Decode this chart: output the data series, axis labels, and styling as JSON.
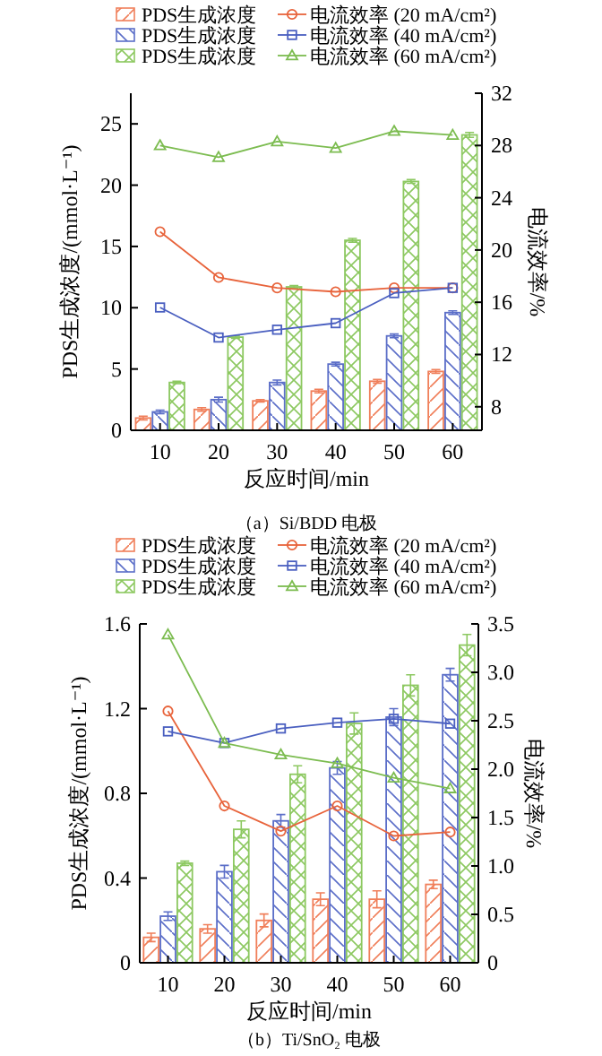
{
  "chart_data": [
    {
      "type": "bar",
      "categories": [
        "10",
        "20",
        "30",
        "40",
        "50",
        "60"
      ],
      "xlabel": "反应时间/min",
      "ylabel": "PDS生成浓度/(mmol·L⁻¹)",
      "y2label": "电流效率/%",
      "ylim": [
        0,
        27.5
      ],
      "yticks": [
        0,
        5,
        10,
        15,
        20,
        25
      ],
      "y2lim": [
        6.2,
        32
      ],
      "y2ticks": [
        8,
        12,
        16,
        20,
        24,
        28,
        32
      ],
      "legend": "top",
      "grid": false,
      "annotations": [
        "（a）Si/BDD 电极"
      ],
      "series": [
        {
          "name": "PDS生成浓度",
          "color": "#f07f5a",
          "values": [
            1.0,
            1.7,
            2.4,
            3.2,
            4.0,
            4.8
          ],
          "errors": [
            0.15,
            0.15,
            0.1,
            0.15,
            0.15,
            0.15
          ]
        },
        {
          "name": "PDS生成浓度",
          "color": "#5b6ec8",
          "values": [
            1.5,
            2.5,
            3.9,
            5.4,
            7.7,
            9.6
          ],
          "errors": [
            0.15,
            0.2,
            0.2,
            0.15,
            0.15,
            0.15
          ]
        },
        {
          "name": "PDS生成浓度",
          "color": "#8cc860",
          "values": [
            3.9,
            7.6,
            11.7,
            15.5,
            20.3,
            24.1
          ],
          "errors": [
            0.1,
            0.1,
            0.1,
            0.15,
            0.15,
            0.2
          ]
        },
        {
          "type": "line",
          "axis": "y2",
          "marker": "circle",
          "name": "电流效率 (20 mA/cm²)",
          "color": "#e8643c",
          "values": [
            21.4,
            17.9,
            17.1,
            16.8,
            17.1,
            17.1
          ]
        },
        {
          "type": "line",
          "axis": "y2",
          "marker": "square",
          "name": "电流效率 (40 mA/cm²)",
          "color": "#4a5fc0",
          "values": [
            15.6,
            13.3,
            13.9,
            14.4,
            16.7,
            17.1
          ]
        },
        {
          "type": "line",
          "axis": "y2",
          "marker": "triangle",
          "name": "电流效率 (60 mA/cm²)",
          "color": "#7cbc50",
          "values": [
            28.0,
            27.1,
            28.3,
            27.8,
            29.1,
            28.8
          ]
        }
      ]
    },
    {
      "type": "bar",
      "categories": [
        "10",
        "20",
        "30",
        "40",
        "50",
        "60"
      ],
      "xlabel": "反应时间/min",
      "ylabel": "PDS生成浓度/(mmol·L⁻¹)",
      "y2label": "电流效率/%",
      "ylim": [
        0,
        1.6
      ],
      "yticks": [
        0,
        0.4,
        0.8,
        1.2,
        1.6
      ],
      "y2lim": [
        0,
        3.5
      ],
      "y2ticks": [
        {
          "value": 0,
          "label": "0"
        },
        0.5,
        {
          "value": 1,
          "label": "1.0"
        },
        1.5,
        {
          "value": 2,
          "label": "2.0"
        },
        2.5,
        {
          "value": 3,
          "label": "3.0"
        },
        3.5
      ],
      "legend": "top",
      "grid": false,
      "annotations": [
        "（b）Ti/SnO₂ 电极"
      ],
      "series": [
        {
          "name": "PDS生成浓度",
          "color": "#f07f5a",
          "values": [
            0.12,
            0.16,
            0.2,
            0.3,
            0.3,
            0.37
          ],
          "errors": [
            0.02,
            0.02,
            0.03,
            0.03,
            0.04,
            0.02
          ]
        },
        {
          "name": "PDS生成浓度",
          "color": "#5b6ec8",
          "values": [
            0.22,
            0.43,
            0.67,
            0.92,
            1.16,
            1.36
          ],
          "errors": [
            0.02,
            0.03,
            0.03,
            0.03,
            0.04,
            0.03
          ]
        },
        {
          "name": "PDS生成浓度",
          "color": "#8cc860",
          "values": [
            0.47,
            0.63,
            0.89,
            1.13,
            1.31,
            1.5
          ],
          "errors": [
            0.01,
            0.04,
            0.04,
            0.05,
            0.05,
            0.05
          ]
        },
        {
          "type": "line",
          "axis": "y2",
          "marker": "circle",
          "name": "电流效率 (20 mA/cm²)",
          "color": "#e8643c",
          "values": [
            2.6,
            1.62,
            1.36,
            1.62,
            1.31,
            1.35
          ]
        },
        {
          "type": "line",
          "axis": "y2",
          "marker": "square",
          "name": "电流效率 (40 mA/cm²)",
          "color": "#4a5fc0",
          "values": [
            2.39,
            2.27,
            2.42,
            2.48,
            2.52,
            2.47
          ]
        },
        {
          "type": "line",
          "axis": "y2",
          "marker": "triangle",
          "name": "电流效率 (60 mA/cm²)",
          "color": "#7cbc50",
          "values": [
            3.39,
            2.27,
            2.15,
            2.06,
            1.91,
            1.8
          ]
        }
      ]
    }
  ]
}
